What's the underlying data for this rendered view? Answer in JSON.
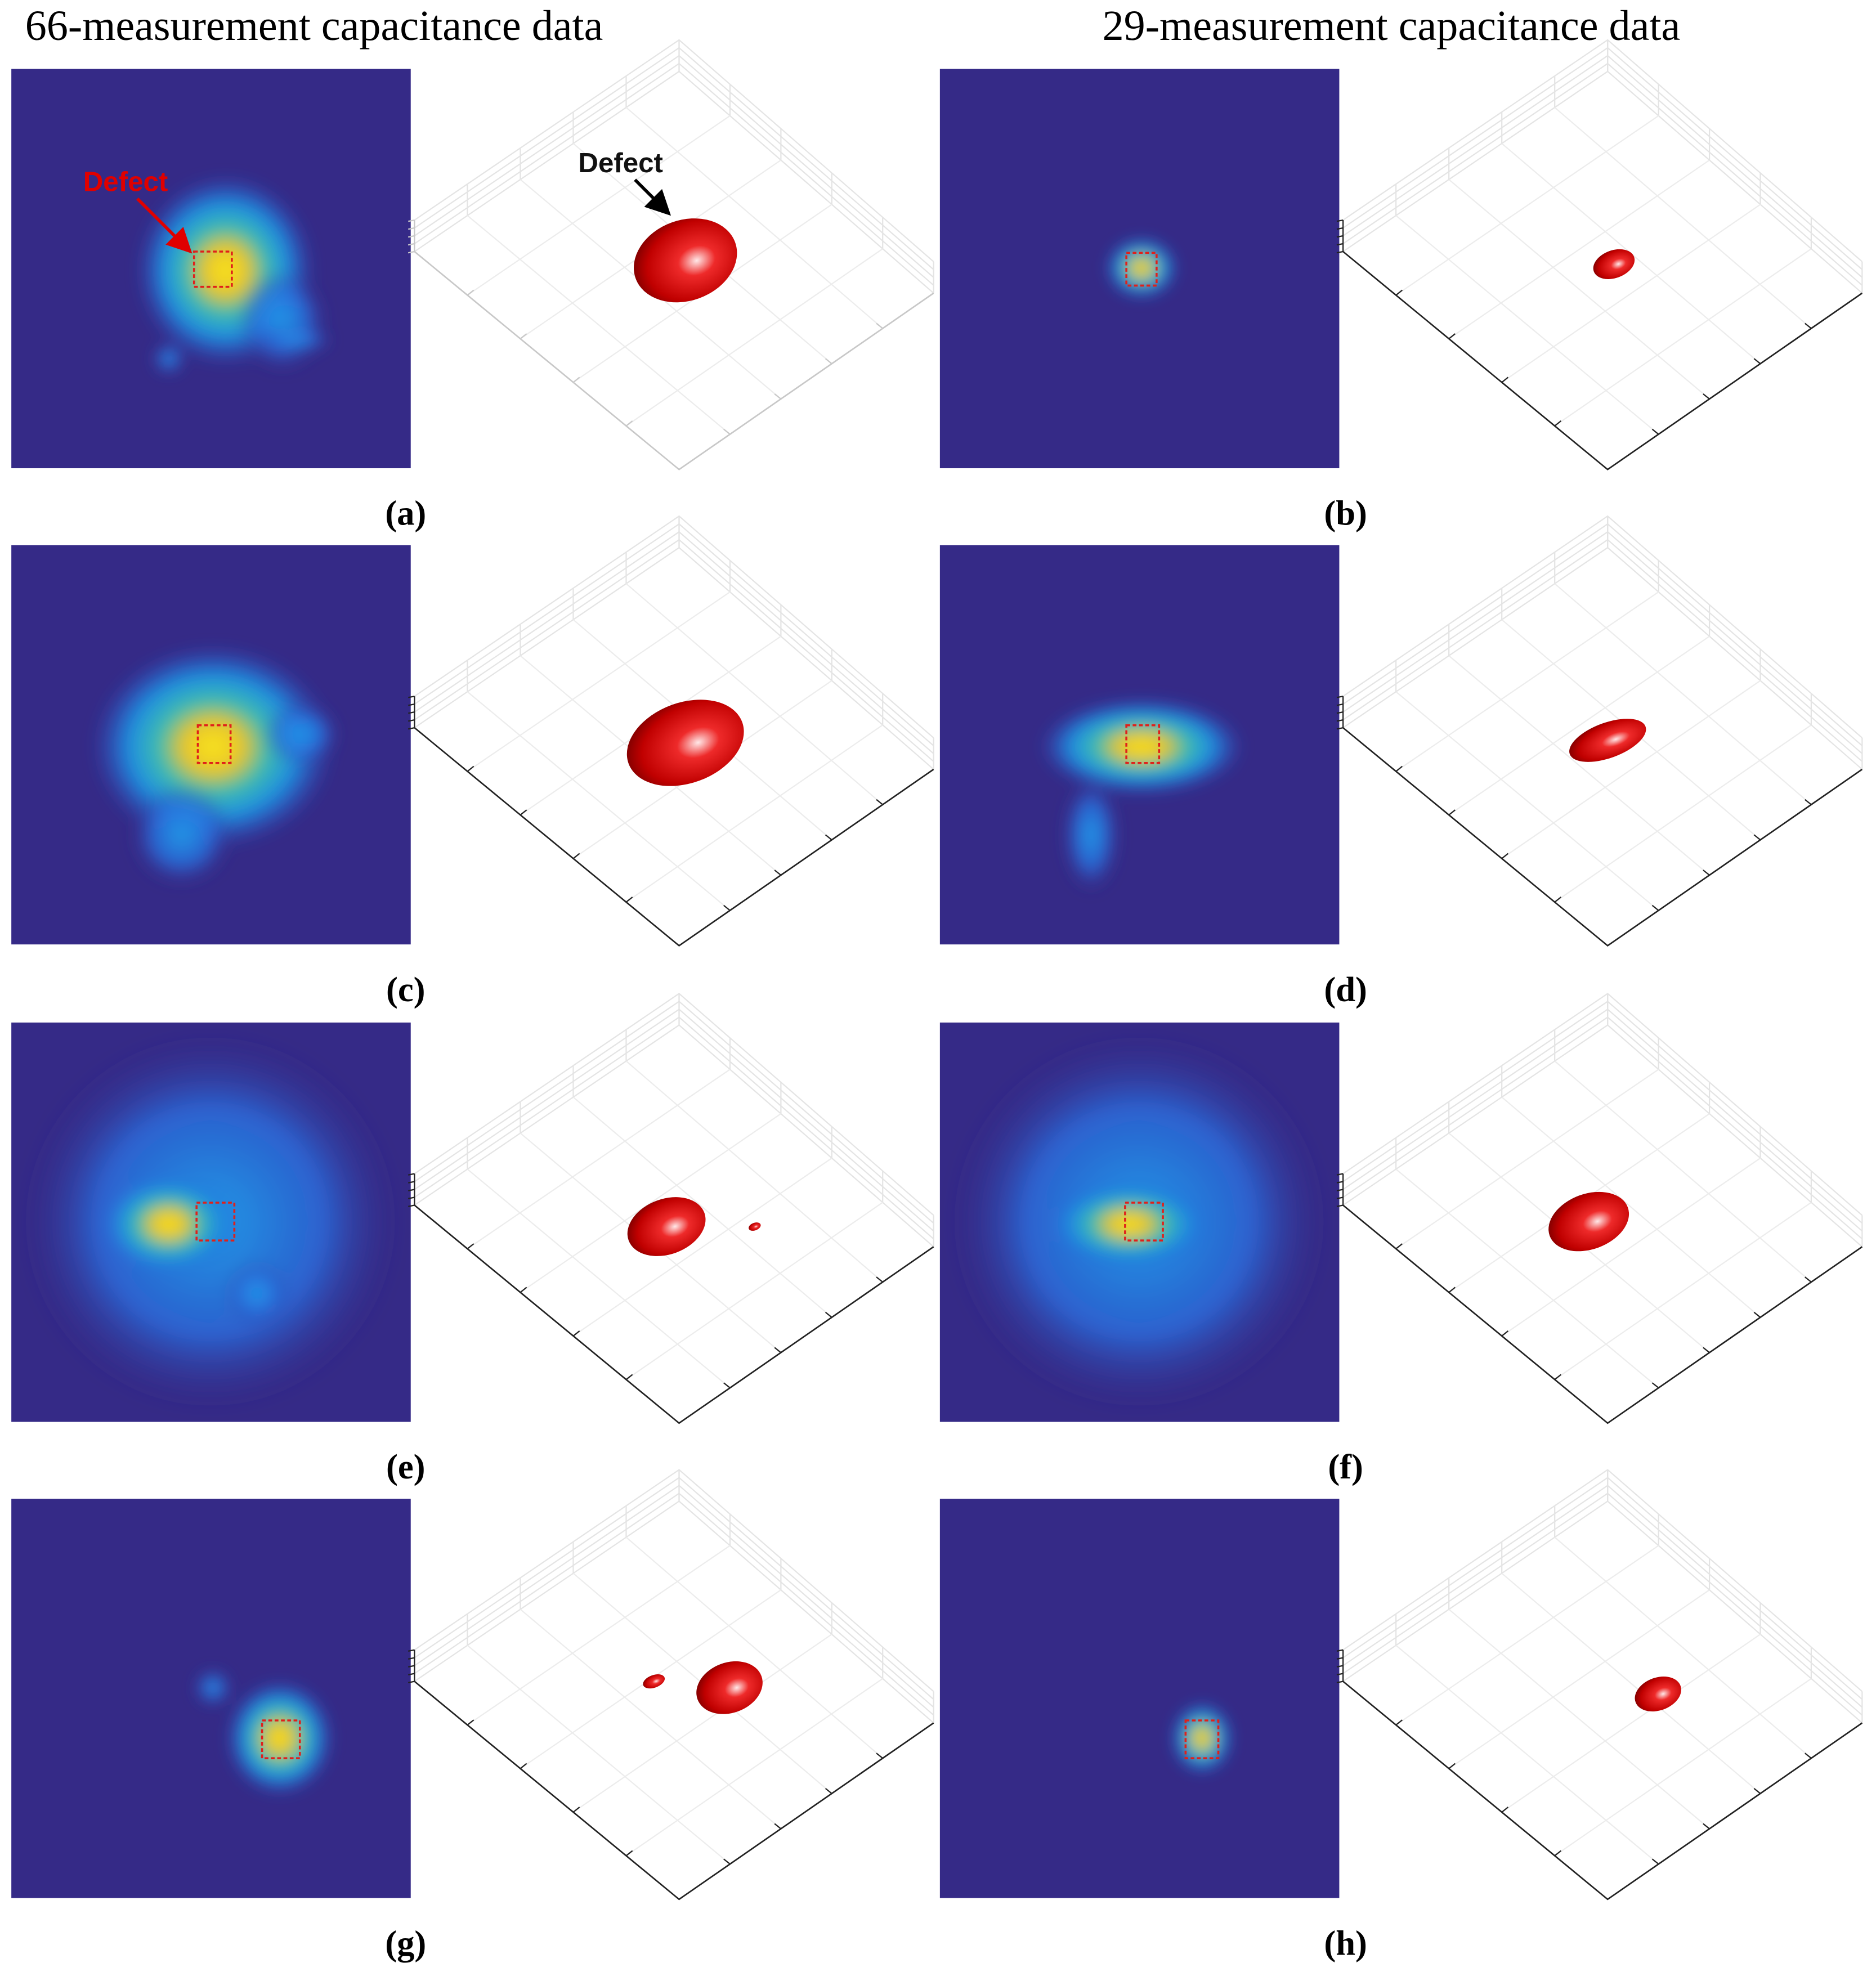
{
  "headers": [
    "66-measurement capacitance data",
    "29-measurement capacitance data"
  ],
  "panels": [
    {
      "label": "(a)",
      "annotations": [
        "Defect",
        "Defect"
      ]
    },
    {
      "label": "(b)"
    },
    {
      "label": "(c)"
    },
    {
      "label": "(d)"
    },
    {
      "label": "(e)"
    },
    {
      "label": "(f)"
    },
    {
      "label": "(g)"
    },
    {
      "label": "(h)"
    }
  ]
}
